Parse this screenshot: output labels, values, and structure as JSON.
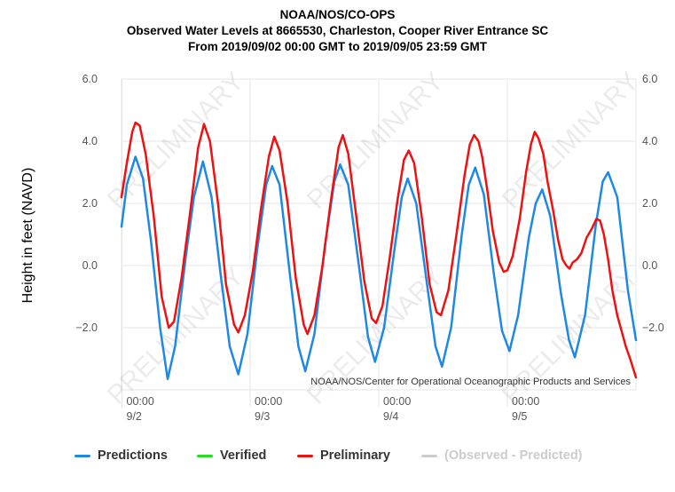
{
  "title_lines": [
    "NOAA/NOS/CO-OPS",
    "Observed Water Levels at 8665530, Charleston, Cooper River Entrance SC",
    "From 2019/09/02 00:00 GMT to 2019/09/05 23:59 GMT"
  ],
  "credit": "NOAA/NOS/Center for Operational Oceanographic Products and Services",
  "watermark": "PRELIMINARY",
  "legend": [
    {
      "label": "Predictions",
      "color": "#1e88e5",
      "hidden": false
    },
    {
      "label": "Verified",
      "color": "#22dd22",
      "hidden": false
    },
    {
      "label": "Preliminary",
      "color": "#ee1111",
      "hidden": false
    },
    {
      "label": "(Observed - Predicted)",
      "color": "#cccccc",
      "hidden": true
    }
  ],
  "chart_data": {
    "type": "line",
    "ylabel": "Height in feet (NAVD)",
    "ylim": [
      -4.0,
      6.0
    ],
    "y_ticks": [
      6.0,
      4.0,
      2.0,
      0.0,
      -2.0
    ],
    "y_tick_labels": [
      "6.0",
      "4.0",
      "2.0",
      "0.0",
      "−2.0"
    ],
    "x_range_hours": [
      0,
      96
    ],
    "x_ticks": [
      {
        "hour": 0,
        "time": "00:00",
        "date": "9/2"
      },
      {
        "hour": 24,
        "time": "00:00",
        "date": "9/3"
      },
      {
        "hour": 48,
        "time": "00:00",
        "date": "9/4"
      },
      {
        "hour": 72,
        "time": "00:00",
        "date": "9/5"
      }
    ],
    "grid": true,
    "series": [
      {
        "name": "Predictions",
        "color": "#1e88e5",
        "points": [
          [
            0,
            1.25
          ],
          [
            1,
            2.6
          ],
          [
            2.6,
            3.5
          ],
          [
            4,
            2.8
          ],
          [
            5.5,
            0.8
          ],
          [
            7.2,
            -2.0
          ],
          [
            8.6,
            -3.65
          ],
          [
            10,
            -2.6
          ],
          [
            12,
            0.3
          ],
          [
            13.5,
            2.2
          ],
          [
            15.2,
            3.35
          ],
          [
            16.8,
            2.2
          ],
          [
            18.5,
            -0.3
          ],
          [
            20.2,
            -2.6
          ],
          [
            21.8,
            -3.5
          ],
          [
            23.5,
            -2.2
          ],
          [
            25.3,
            0.5
          ],
          [
            27,
            2.6
          ],
          [
            28.1,
            3.2
          ],
          [
            29.5,
            2.6
          ],
          [
            31.5,
            -0.4
          ],
          [
            33,
            -2.6
          ],
          [
            34.3,
            -3.4
          ],
          [
            36,
            -2.2
          ],
          [
            38,
            0.7
          ],
          [
            39.7,
            2.7
          ],
          [
            40.8,
            3.25
          ],
          [
            42.3,
            2.6
          ],
          [
            44.3,
            0.0
          ],
          [
            46,
            -2.3
          ],
          [
            47.3,
            -3.1
          ],
          [
            49,
            -2.0
          ],
          [
            51,
            0.6
          ],
          [
            52.3,
            2.2
          ],
          [
            53.4,
            2.8
          ],
          [
            55,
            2.0
          ],
          [
            57,
            -0.6
          ],
          [
            58.6,
            -2.6
          ],
          [
            59.8,
            -3.25
          ],
          [
            61.5,
            -2.0
          ],
          [
            63.5,
            1.0
          ],
          [
            64.8,
            2.6
          ],
          [
            66,
            3.15
          ],
          [
            67.6,
            2.3
          ],
          [
            69.5,
            -0.3
          ],
          [
            71,
            -2.1
          ],
          [
            72.4,
            -2.75
          ],
          [
            74,
            -1.6
          ],
          [
            76,
            0.9
          ],
          [
            77.3,
            2.0
          ],
          [
            78.5,
            2.45
          ],
          [
            80,
            1.6
          ],
          [
            82,
            -0.9
          ],
          [
            83.5,
            -2.4
          ],
          [
            84.6,
            -2.95
          ],
          [
            86.5,
            -1.6
          ],
          [
            88.5,
            1.3
          ],
          [
            89.8,
            2.7
          ],
          [
            90.8,
            3.0
          ],
          [
            92.5,
            2.2
          ],
          [
            94.5,
            -0.8
          ],
          [
            96,
            -2.4
          ]
        ]
      },
      {
        "name": "Verified",
        "color": "#22dd22",
        "points": []
      },
      {
        "name": "Preliminary",
        "color": "#ee1111",
        "points": [
          [
            0,
            2.2
          ],
          [
            1,
            3.3
          ],
          [
            2,
            4.3
          ],
          [
            2.6,
            4.6
          ],
          [
            3.4,
            4.5
          ],
          [
            4.5,
            3.6
          ],
          [
            6,
            1.6
          ],
          [
            7.5,
            -1.0
          ],
          [
            8.8,
            -2.0
          ],
          [
            9.8,
            -1.8
          ],
          [
            11.2,
            -0.4
          ],
          [
            12.8,
            1.7
          ],
          [
            14.3,
            3.8
          ],
          [
            15.4,
            4.55
          ],
          [
            16.5,
            4.0
          ],
          [
            18,
            2.0
          ],
          [
            19.5,
            -0.6
          ],
          [
            21,
            -1.9
          ],
          [
            21.8,
            -2.15
          ],
          [
            23,
            -1.6
          ],
          [
            24.5,
            -0.2
          ],
          [
            26,
            1.8
          ],
          [
            27.5,
            3.5
          ],
          [
            28.5,
            4.15
          ],
          [
            29.5,
            3.7
          ],
          [
            31,
            2.0
          ],
          [
            32.5,
            -0.4
          ],
          [
            34,
            -1.9
          ],
          [
            34.7,
            -2.2
          ],
          [
            36,
            -1.6
          ],
          [
            37.5,
            0.0
          ],
          [
            39,
            2.0
          ],
          [
            40.5,
            3.8
          ],
          [
            41.3,
            4.2
          ],
          [
            42.3,
            3.6
          ],
          [
            43.8,
            1.6
          ],
          [
            45.3,
            -0.5
          ],
          [
            46.7,
            -1.7
          ],
          [
            47.5,
            -1.85
          ],
          [
            48.7,
            -1.3
          ],
          [
            50,
            0.2
          ],
          [
            51.5,
            2.1
          ],
          [
            52.7,
            3.4
          ],
          [
            53.6,
            3.7
          ],
          [
            54.6,
            3.3
          ],
          [
            56,
            1.6
          ],
          [
            57.5,
            -0.6
          ],
          [
            58.8,
            -1.5
          ],
          [
            59.6,
            -1.6
          ],
          [
            61,
            -0.8
          ],
          [
            62.5,
            1.0
          ],
          [
            64,
            2.9
          ],
          [
            65,
            3.9
          ],
          [
            65.8,
            4.2
          ],
          [
            66.6,
            4.0
          ],
          [
            67.3,
            3.5
          ],
          [
            68.2,
            2.5
          ],
          [
            69.3,
            1.1
          ],
          [
            70.5,
            0.1
          ],
          [
            71.3,
            -0.2
          ],
          [
            72,
            -0.15
          ],
          [
            73,
            0.3
          ],
          [
            74.3,
            1.5
          ],
          [
            75.5,
            3.0
          ],
          [
            76.4,
            3.9
          ],
          [
            77.1,
            4.3
          ],
          [
            77.8,
            4.1
          ],
          [
            78.7,
            3.6
          ],
          [
            79.5,
            2.7
          ],
          [
            80.5,
            1.8
          ],
          [
            81.5,
            0.8
          ],
          [
            82.3,
            0.2
          ],
          [
            83,
            0.0
          ],
          [
            83.6,
            -0.1
          ],
          [
            84.2,
            0.1
          ],
          [
            85,
            0.2
          ],
          [
            85.8,
            0.4
          ],
          [
            86.8,
            0.9
          ],
          [
            87.8,
            1.2
          ],
          [
            88.6,
            1.5
          ],
          [
            89.3,
            1.45
          ],
          [
            90,
            1.0
          ],
          [
            90.8,
            0.2
          ],
          [
            91.6,
            -0.8
          ],
          [
            92.5,
            -1.6
          ],
          [
            93.3,
            -2.1
          ],
          [
            94.1,
            -2.6
          ],
          [
            94.9,
            -3.0
          ],
          [
            96,
            -3.6
          ]
        ]
      }
    ]
  }
}
